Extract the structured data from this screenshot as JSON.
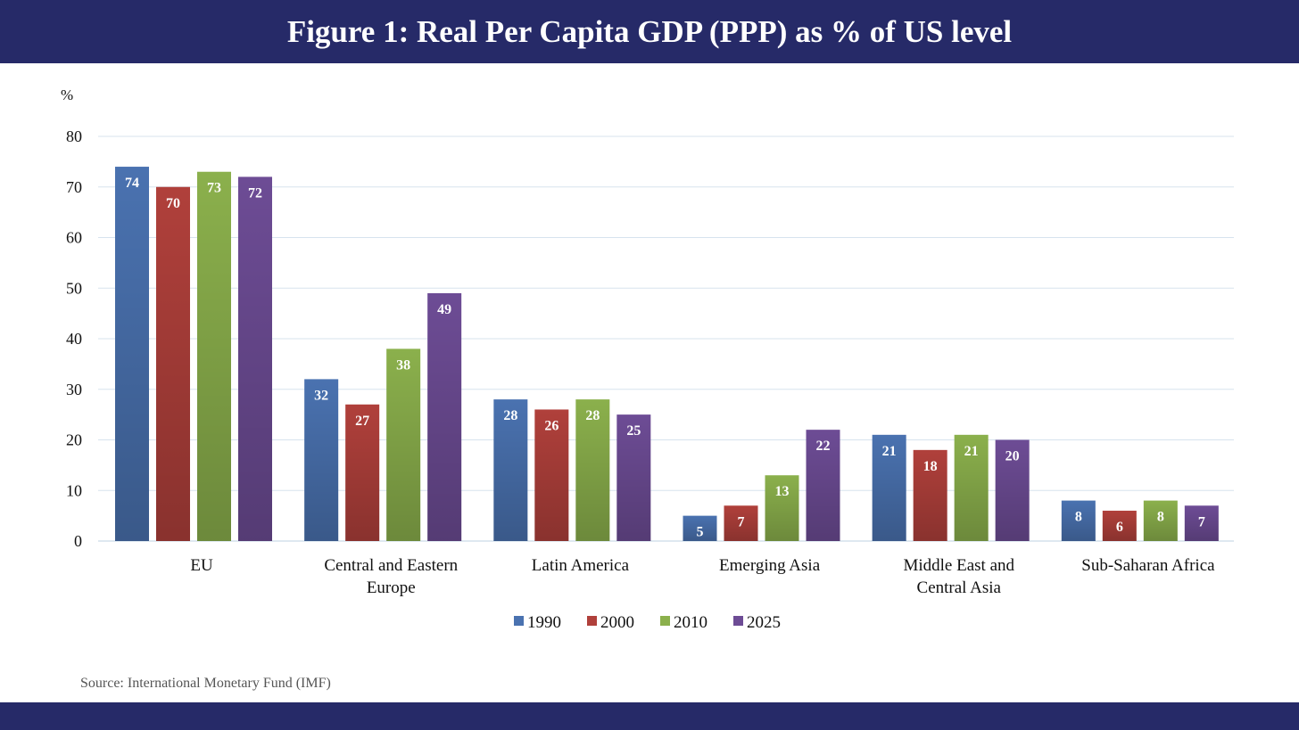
{
  "chart_data": {
    "type": "bar",
    "title": "Figure 1: Real Per Capita GDP (PPP) as % of US level",
    "ylabel": "%",
    "xlabel": "",
    "ylim": [
      0,
      80
    ],
    "yticks": [
      0,
      10,
      20,
      30,
      40,
      50,
      60,
      70,
      80
    ],
    "grid": true,
    "legend_position": "bottom",
    "categories": [
      [
        "EU"
      ],
      [
        "Central and Eastern",
        "Europe"
      ],
      [
        "Latin America"
      ],
      [
        "Emerging Asia"
      ],
      [
        "Middle East and",
        "Central Asia"
      ],
      [
        "Sub-Saharan Africa"
      ]
    ],
    "series": [
      {
        "name": "1990",
        "color": "#4a72b0",
        "values": [
          74,
          32,
          28,
          5,
          21,
          8
        ]
      },
      {
        "name": "2000",
        "color": "#b0403b",
        "values": [
          70,
          27,
          26,
          7,
          18,
          6
        ]
      },
      {
        "name": "2010",
        "color": "#8bb04c",
        "values": [
          73,
          38,
          28,
          13,
          21,
          8
        ]
      },
      {
        "name": "2025",
        "color": "#6d4c95",
        "values": [
          72,
          49,
          25,
          22,
          20,
          7
        ]
      }
    ],
    "source": "Source: International Monetary Fund (IMF)"
  },
  "colors": {
    "band": "#262a68"
  }
}
